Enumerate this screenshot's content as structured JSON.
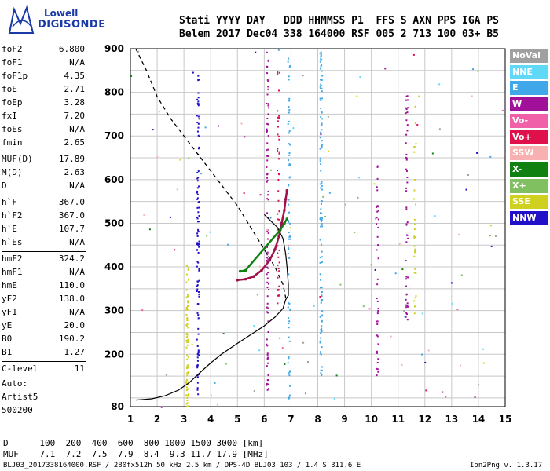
{
  "logo": {
    "line1": "Lowell",
    "line2": "DIGISONDE"
  },
  "header": {
    "row1": "Stati YYYY DAY   DDD HHMMSS P1  FFS S AXN PPS IGA PS",
    "row2": "Belem 2017 Dec04 338 164000 RSF 005 2 713 100 03+ B5"
  },
  "params": [
    {
      "k": "foF2",
      "v": "6.800"
    },
    {
      "k": "foF1",
      "v": "N/A"
    },
    {
      "k": "foF1p",
      "v": "4.35"
    },
    {
      "k": "foE",
      "v": "2.71"
    },
    {
      "k": "foEp",
      "v": "3.28"
    },
    {
      "k": "fxI",
      "v": "7.20"
    },
    {
      "k": "foEs",
      "v": "N/A"
    },
    {
      "k": "fmin",
      "v": "2.65"
    },
    {
      "k": "MUF(D)",
      "v": "17.89"
    },
    {
      "k": "M(D)",
      "v": "2.63"
    },
    {
      "k": "D",
      "v": "N/A"
    },
    {
      "k": "h`F",
      "v": "367.0"
    },
    {
      "k": "h`F2",
      "v": "367.0"
    },
    {
      "k": "h`E",
      "v": "107.7"
    },
    {
      "k": "h`Es",
      "v": "N/A"
    },
    {
      "k": "hmF2",
      "v": "324.2"
    },
    {
      "k": "hmF1",
      "v": "N/A"
    },
    {
      "k": "hmE",
      "v": "110.0"
    },
    {
      "k": "yF2",
      "v": "138.0"
    },
    {
      "k": "yF1",
      "v": "N/A"
    },
    {
      "k": "yE",
      "v": "20.0"
    },
    {
      "k": "B0",
      "v": "190.2"
    },
    {
      "k": "B1",
      "v": "1.27"
    },
    {
      "k": "C-level",
      "v": "11"
    }
  ],
  "auto": [
    "Auto:",
    "Artist5",
    "500200"
  ],
  "legend": [
    {
      "label": "NoVal",
      "color": "#a0a0a0"
    },
    {
      "label": "NNE",
      "color": "#60d8f8"
    },
    {
      "label": "E",
      "color": "#40a8e8"
    },
    {
      "label": "W",
      "color": "#a01098"
    },
    {
      "label": "Vo-",
      "color": "#f060a8"
    },
    {
      "label": "Vo+",
      "color": "#e0104a"
    },
    {
      "label": "SSW",
      "color": "#f8b0b0"
    },
    {
      "label": "X-",
      "color": "#108010"
    },
    {
      "label": "X+",
      "color": "#80c060"
    },
    {
      "label": "SSE",
      "color": "#d0d020"
    },
    {
      "label": "NNW",
      "color": "#2010c8"
    }
  ],
  "bottom": {
    "row1": "D      100  200  400  600  800 1000 1500 3000 [km]",
    "row2": "MUF    7.1  7.2  7.5  7.9  8.4  9.3 11.7 17.9 [MHz]"
  },
  "footer": {
    "left": "BLJ03_2017338164000.RSF / 280fx512h 50 kHz 2.5 km / DPS-4D BLJ03 103 / 1.4 S 311.6 E",
    "right": "Ion2Png v. 1.3.17"
  },
  "chart_data": {
    "type": "scatter",
    "x_ticks": [
      1,
      2,
      3,
      4,
      5,
      6,
      7,
      8,
      9,
      10,
      11,
      12,
      13,
      14,
      15
    ],
    "y_ticks": [
      80,
      200,
      300,
      400,
      500,
      600,
      700,
      800,
      900
    ],
    "xlim": [
      1,
      15
    ],
    "ylim": [
      80,
      900
    ],
    "grid": true,
    "series": [
      {
        "role": "profile-dashed",
        "color": "#000000",
        "points": [
          [
            1.2,
            900
          ],
          [
            1.6,
            850
          ],
          [
            2.0,
            790
          ],
          [
            2.5,
            740
          ],
          [
            3.0,
            700
          ],
          [
            3.5,
            660
          ],
          [
            4.0,
            620
          ],
          [
            4.5,
            580
          ],
          [
            5.0,
            540
          ],
          [
            5.5,
            490
          ],
          [
            6.0,
            440
          ],
          [
            6.4,
            400
          ],
          [
            6.7,
            360
          ],
          [
            6.8,
            330
          ]
        ]
      },
      {
        "role": "profile-solid",
        "color": "#000000",
        "points": [
          [
            1.2,
            95
          ],
          [
            1.8,
            98
          ],
          [
            2.3,
            105
          ],
          [
            2.8,
            118
          ],
          [
            3.2,
            135
          ],
          [
            3.6,
            158
          ],
          [
            4.0,
            180
          ],
          [
            4.4,
            200
          ],
          [
            5.0,
            225
          ],
          [
            5.5,
            245
          ],
          [
            6.0,
            265
          ],
          [
            6.4,
            285
          ],
          [
            6.7,
            305
          ],
          [
            6.8,
            325
          ],
          [
            6.9,
            335
          ],
          [
            6.9,
            360
          ],
          [
            6.85,
            400
          ],
          [
            6.8,
            430
          ],
          [
            6.7,
            465
          ],
          [
            6.5,
            490
          ],
          [
            6.0,
            520
          ]
        ]
      },
      {
        "role": "o-trace",
        "color": "#a0104a",
        "points": [
          [
            5.0,
            370
          ],
          [
            5.3,
            372
          ],
          [
            5.6,
            378
          ],
          [
            5.9,
            392
          ],
          [
            6.2,
            415
          ],
          [
            6.4,
            440
          ],
          [
            6.55,
            470
          ],
          [
            6.65,
            500
          ],
          [
            6.75,
            530
          ],
          [
            6.8,
            555
          ],
          [
            6.85,
            575
          ]
        ]
      },
      {
        "role": "x-trace",
        "color": "#108010",
        "points": [
          [
            5.1,
            390
          ],
          [
            5.3,
            392
          ],
          [
            6.6,
            485
          ],
          [
            6.75,
            500
          ],
          [
            6.85,
            510
          ]
        ]
      }
    ]
  }
}
